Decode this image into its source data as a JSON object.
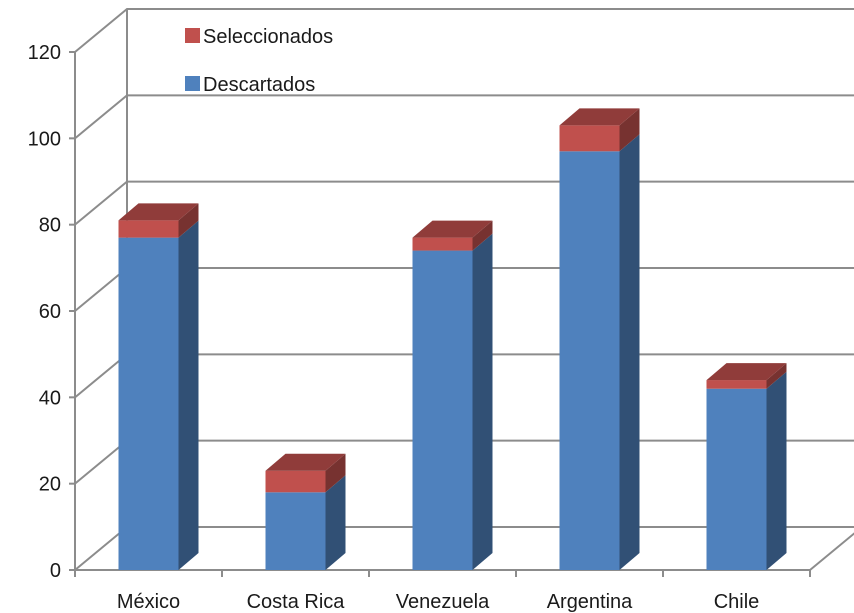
{
  "chart_data": {
    "type": "bar",
    "stacked": true,
    "three_d": true,
    "categories": [
      "México",
      "Costa Rica",
      "Venezuela",
      "Argentina",
      "Chile"
    ],
    "series": [
      {
        "name": "Descartados",
        "values": [
          77,
          18,
          74,
          97,
          42
        ],
        "color": "#4F81BD"
      },
      {
        "name": "Seleccionados",
        "values": [
          4,
          5,
          3,
          6,
          2
        ],
        "color": "#C0504D"
      }
    ],
    "ylim": [
      0,
      120
    ],
    "yticks": [
      0,
      20,
      40,
      60,
      80,
      100,
      120
    ],
    "grid": true,
    "legend_placement": "top-left",
    "title": "",
    "xlabel": "",
    "ylabel": ""
  }
}
